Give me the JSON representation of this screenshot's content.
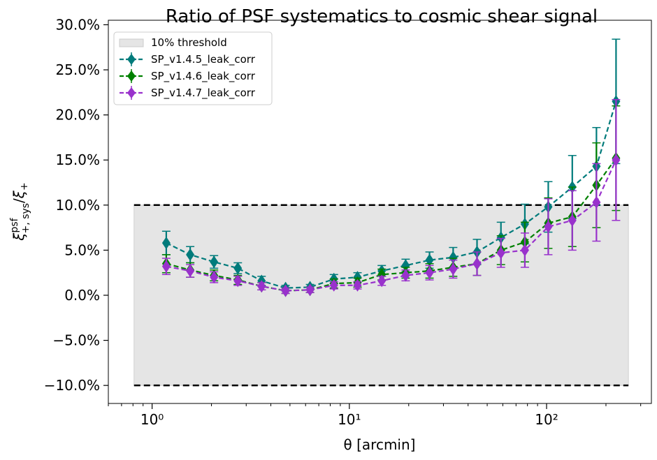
{
  "chart_data": {
    "type": "line",
    "title": "Ratio of PSF systematics to cosmic shear signal",
    "xlabel": "θ [arcmin]",
    "ylabel": "ξ^psf_{+,sys} / ξ_+",
    "xscale": "log",
    "xlim": [
      0.6,
      340
    ],
    "ylim": [
      -12,
      30.5
    ],
    "grid": false,
    "legend_position": "top-left",
    "x_ticks": [
      {
        "value": 1,
        "label": "10⁰"
      },
      {
        "value": 10,
        "label": "10¹"
      },
      {
        "value": 100,
        "label": "10²"
      }
    ],
    "y_ticks": [
      {
        "value": 30,
        "label": "30.0%"
      },
      {
        "value": 25,
        "label": "25.0%"
      },
      {
        "value": 20,
        "label": "20.0%"
      },
      {
        "value": 15,
        "label": "15.0%"
      },
      {
        "value": 10,
        "label": "10.0%"
      },
      {
        "value": 5,
        "label": "5.0%"
      },
      {
        "value": 0,
        "label": "0.0%"
      },
      {
        "value": -5,
        "label": "−5.0%"
      },
      {
        "value": -10,
        "label": "−10.0%"
      }
    ],
    "threshold": {
      "label": "10% threshold",
      "lower": -10,
      "upper": 10,
      "x_range": [
        0.81,
        260
      ],
      "fill_color": "#e5e5e5",
      "line_color": "#000000"
    },
    "x": [
      1.18,
      1.56,
      2.06,
      2.72,
      3.59,
      4.75,
      6.32,
      8.35,
      11.0,
      14.6,
      19.3,
      25.5,
      33.6,
      44.4,
      58.7,
      77.6,
      102,
      135,
      179,
      225
    ],
    "series": [
      {
        "name": "SP_v1.4.5_leak_corr",
        "color": "#007b7b",
        "values": [
          5.8,
          4.5,
          3.7,
          3.0,
          1.6,
          0.8,
          0.9,
          1.8,
          2.0,
          2.7,
          3.3,
          3.9,
          4.2,
          4.8,
          6.4,
          7.9,
          9.8,
          12.0,
          14.3,
          21.5
        ],
        "errors": [
          1.3,
          0.9,
          0.7,
          0.6,
          0.5,
          0.3,
          0.3,
          0.5,
          0.5,
          0.6,
          0.7,
          0.9,
          1.1,
          1.4,
          1.7,
          2.2,
          2.8,
          3.5,
          4.3,
          6.9
        ]
      },
      {
        "name": "SP_v1.4.6_leak_corr",
        "color": "#008000",
        "values": [
          3.5,
          2.8,
          2.2,
          1.7,
          1.0,
          0.5,
          0.6,
          1.3,
          1.4,
          2.3,
          2.5,
          2.7,
          3.1,
          3.5,
          5.0,
          5.9,
          8.0,
          8.7,
          12.2,
          15.2
        ],
        "errors": [
          1.0,
          0.8,
          0.6,
          0.5,
          0.4,
          0.3,
          0.3,
          0.5,
          0.5,
          0.6,
          0.6,
          0.8,
          1.0,
          1.3,
          1.6,
          2.2,
          2.8,
          3.3,
          4.7,
          5.8
        ]
      },
      {
        "name": "SP_v1.4.7_leak_corr",
        "color": "#9932cc",
        "values": [
          3.2,
          2.7,
          2.0,
          1.6,
          1.0,
          0.5,
          0.6,
          1.1,
          1.1,
          1.6,
          2.2,
          2.5,
          2.9,
          3.5,
          4.7,
          5.0,
          7.6,
          8.3,
          10.3,
          15.0
        ],
        "errors": [
          0.9,
          0.7,
          0.6,
          0.5,
          0.4,
          0.3,
          0.3,
          0.4,
          0.4,
          0.5,
          0.6,
          0.8,
          1.0,
          1.3,
          1.6,
          1.9,
          3.1,
          3.3,
          4.3,
          6.7
        ]
      }
    ]
  }
}
